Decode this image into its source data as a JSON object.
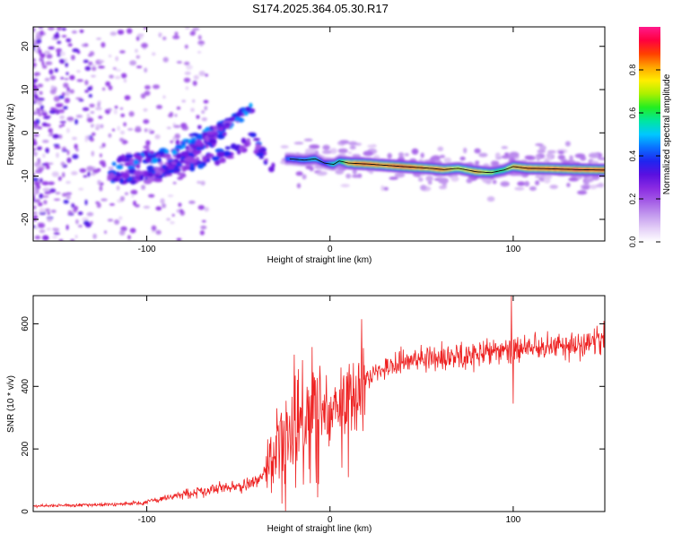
{
  "title": "S174.2025.364.05.30.R17",
  "colors": {
    "snr_line": "#ee2222",
    "ridge_line": "#111111",
    "colormap": [
      "#ffffff",
      "#e4cff7",
      "#c39aee",
      "#a45de6",
      "#8a2be2",
      "#5a10e0",
      "#1f25f0",
      "#0a70ff",
      "#00c8ff",
      "#00e6a0",
      "#22ee22",
      "#aaf000",
      "#ffee00",
      "#ffa500",
      "#ff4000",
      "#ff0040",
      "#ff1a8c"
    ]
  },
  "chart_data": [
    {
      "type": "heatmap",
      "name": "spectrogram",
      "xlabel": "Height of straight line (km)",
      "ylabel": "Frequency (Hz)",
      "xlim": [
        -162,
        150
      ],
      "ylim": [
        -25,
        24.5
      ],
      "xticks": [
        -100,
        0,
        100
      ],
      "xtick_labels": [
        "-100",
        "0",
        "100"
      ],
      "yticks": [
        -20,
        -10,
        0,
        10,
        20
      ],
      "ytick_labels": [
        "-20",
        "-10",
        "0",
        "10",
        "20"
      ],
      "colorbar": {
        "label": "Normalized spectral amplitude",
        "range": [
          0,
          1
        ],
        "ticks": [
          0.0,
          0.2,
          0.4,
          0.6,
          0.8
        ],
        "tick_labels": [
          "0.0",
          "0.2",
          "0.4",
          "0.6",
          "0.8"
        ]
      },
      "ridge": {
        "x": [
          -22,
          -14,
          -8,
          -3,
          2,
          5,
          10,
          20,
          30,
          40,
          55,
          62,
          70,
          80,
          88,
          95,
          100,
          108,
          120,
          135,
          150
        ],
        "freq": [
          -6,
          -6.3,
          -6,
          -7,
          -7.3,
          -6.5,
          -7,
          -7.2,
          -7.5,
          -7.8,
          -8.2,
          -8.5,
          -8.2,
          -9,
          -9.2,
          -8.6,
          -7.8,
          -8.2,
          -8.3,
          -8.5,
          -8.6
        ],
        "amplitude": [
          0.45,
          0.5,
          0.55,
          0.4,
          0.6,
          0.55,
          0.85,
          0.95,
          0.9,
          0.98,
          0.85,
          0.9,
          0.75,
          0.85,
          0.7,
          0.65,
          0.85,
          0.9,
          0.95,
          0.97,
          0.95
        ]
      },
      "branches": [
        {
          "x": [
            -118,
            -95,
            -75,
            -58,
            -43
          ],
          "freq": [
            -7,
            -5.5,
            -2,
            1.5,
            5.5
          ],
          "amplitude": 0.35
        },
        {
          "x": [
            -100,
            -82,
            -68,
            -55
          ],
          "freq": [
            -10,
            -7,
            -2,
            2
          ],
          "amplitude": 0.3
        },
        {
          "x": [
            -120,
            -98,
            -75,
            -55,
            -42,
            -30
          ],
          "freq": [
            -10,
            -9.5,
            -7.5,
            -5,
            -2,
            -8
          ],
          "amplitude": 0.3
        }
      ]
    },
    {
      "type": "line",
      "name": "snr",
      "xlabel": "Height of straight line (km)",
      "ylabel": "SNR (10 * v/v)",
      "xlim": [
        -162,
        150
      ],
      "ylim": [
        0,
        690
      ],
      "xticks": [
        -100,
        0,
        100
      ],
      "xtick_labels": [
        "-100",
        "0",
        "100"
      ],
      "yticks": [
        0,
        200,
        400,
        600
      ],
      "ytick_labels": [
        "0",
        "200",
        "400",
        "600"
      ],
      "trend": {
        "x": [
          -162,
          -120,
          -100,
          -80,
          -60,
          -45,
          -35,
          -25,
          -15,
          -5,
          5,
          15,
          25,
          40,
          60,
          80,
          100,
          120,
          150
        ],
        "snr": [
          18,
          22,
          30,
          55,
          75,
          85,
          120,
          220,
          300,
          310,
          330,
          390,
          450,
          480,
          490,
          505,
          520,
          530,
          545
        ]
      },
      "spikes": [
        {
          "x": -29,
          "snr": 330
        },
        {
          "x": -25,
          "snr": 290
        },
        {
          "x": -8,
          "snr": 420
        },
        {
          "x": 6,
          "snr": 460
        },
        {
          "x": 10,
          "snr": 110
        },
        {
          "x": 99,
          "snr": 690
        },
        {
          "x": 100,
          "snr": 345
        }
      ]
    }
  ]
}
